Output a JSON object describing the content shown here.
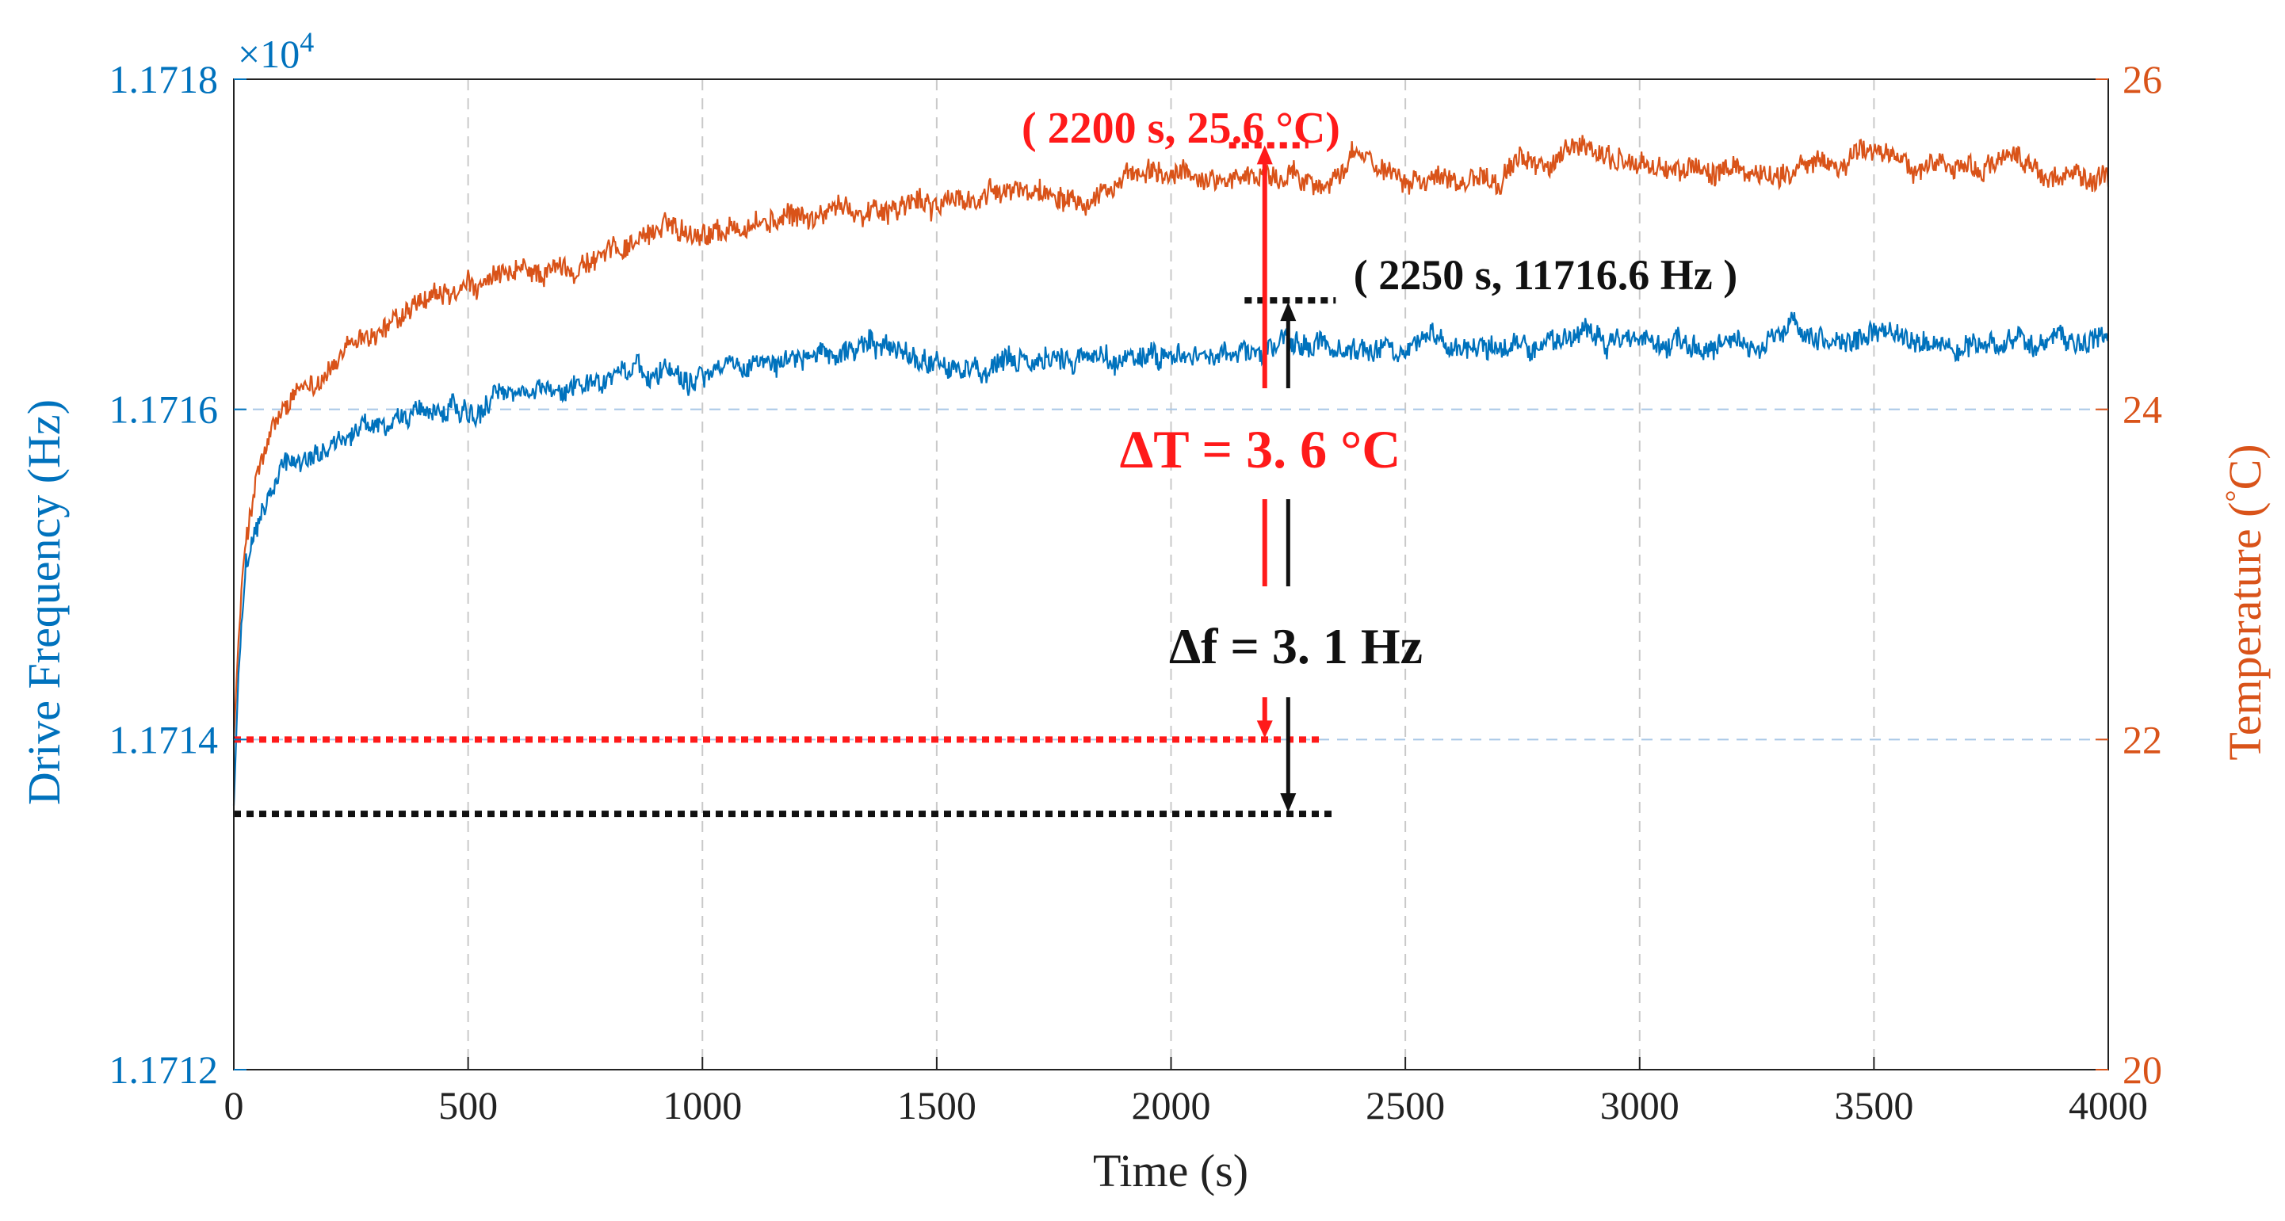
{
  "chart_data": {
    "type": "line",
    "xlabel": "Time (s)",
    "xlim": [
      0,
      4000
    ],
    "x_ticks": [
      "0",
      "500",
      "1000",
      "1500",
      "2000",
      "2500",
      "3000",
      "3500",
      "4000"
    ],
    "x_tick_values": [
      0,
      500,
      1000,
      1500,
      2000,
      2500,
      3000,
      3500,
      4000
    ],
    "left_axis": {
      "label": "Drive Frequency (Hz)",
      "multiplier": "×10",
      "exponent": "4",
      "ylim": [
        1.1712,
        1.1718
      ],
      "ticks": [
        "1.1712",
        "1.1714",
        "1.1716",
        "1.1718"
      ],
      "tick_values": [
        1.1712,
        1.1714,
        1.1716,
        1.1718
      ],
      "color": "#0072BD"
    },
    "right_axis": {
      "label_text": "Temperature (",
      "label_unit": "C)",
      "label_degree": "°",
      "ylim": [
        20,
        26
      ],
      "ticks": [
        "20",
        "22",
        "24",
        "26"
      ],
      "tick_values": [
        20,
        22,
        24,
        26
      ],
      "color": "#D95319"
    },
    "series": [
      {
        "name": "Drive Frequency",
        "axis": "left",
        "color": "#0072BD",
        "units": "x1e4 Hz",
        "x": [
          0,
          10,
          25,
          50,
          75,
          100,
          150,
          200,
          300,
          400,
          500,
          600,
          700,
          800,
          900,
          1000,
          1100,
          1200,
          1300,
          1400,
          1500,
          1600,
          1700,
          1800,
          1900,
          2000,
          2100,
          2200,
          2300,
          2400,
          2500,
          2600,
          2700,
          2800,
          2900,
          3000,
          3100,
          3200,
          3300,
          3400,
          3500,
          3600,
          3700,
          3800,
          3900,
          4000
        ],
        "y": [
          1.17136,
          1.17144,
          1.1715,
          1.17153,
          1.17155,
          1.17156,
          1.17157,
          1.17158,
          1.17159,
          1.1716,
          1.171597,
          1.17161,
          1.171612,
          1.17162,
          1.171625,
          1.171624,
          1.17163,
          1.17163,
          1.171638,
          1.171635,
          1.17163,
          1.171622,
          1.171625,
          1.17163,
          1.17163,
          1.171632,
          1.171635,
          1.171635,
          1.17164,
          1.171638,
          1.17164,
          1.171642,
          1.171642,
          1.17164,
          1.171645,
          1.17164,
          1.171642,
          1.17164,
          1.171642,
          1.171638,
          1.171645,
          1.171642,
          1.171638,
          1.171642,
          1.17164,
          1.17164
        ]
      },
      {
        "name": "Temperature",
        "axis": "right",
        "color": "#D95319",
        "units": "°C",
        "x": [
          0,
          10,
          25,
          50,
          75,
          100,
          150,
          200,
          300,
          400,
          500,
          600,
          700,
          800,
          900,
          1000,
          1100,
          1200,
          1300,
          1400,
          1500,
          1600,
          1700,
          1800,
          1900,
          2000,
          2100,
          2200,
          2300,
          2400,
          2500,
          2600,
          2700,
          2800,
          2900,
          3000,
          3100,
          3200,
          3300,
          3400,
          3500,
          3600,
          3700,
          3800,
          3900,
          4000
        ],
        "y": [
          22.0,
          22.6,
          23.2,
          23.6,
          23.8,
          23.95,
          24.1,
          24.25,
          24.45,
          24.6,
          24.7,
          24.8,
          24.85,
          24.95,
          25.1,
          25.1,
          25.12,
          25.15,
          25.2,
          25.25,
          25.25,
          25.28,
          25.32,
          25.35,
          25.38,
          25.4,
          25.42,
          25.42,
          25.4,
          25.5,
          25.45,
          25.42,
          25.45,
          25.5,
          25.55,
          25.48,
          25.45,
          25.42,
          25.45,
          25.48,
          25.55,
          25.5,
          25.48,
          25.5,
          25.42,
          25.4
        ]
      }
    ],
    "annotations": {
      "temp_point": "( 2200 s, 25.6 °C)",
      "freq_point": "( 2250 s, 11716.6 Hz )",
      "delta_T": "ΔT = 3. 6 °C",
      "delta_f": "Δf = 3. 1 Hz",
      "temp_peak": {
        "x": 2200,
        "temp": 25.6
      },
      "temp_base": {
        "x": 2200,
        "temp": 22.0
      },
      "freq_peak": {
        "x": 2250,
        "freq": 1.171666
      },
      "freq_base": {
        "x": 2250,
        "freq": 1.171355
      }
    }
  }
}
